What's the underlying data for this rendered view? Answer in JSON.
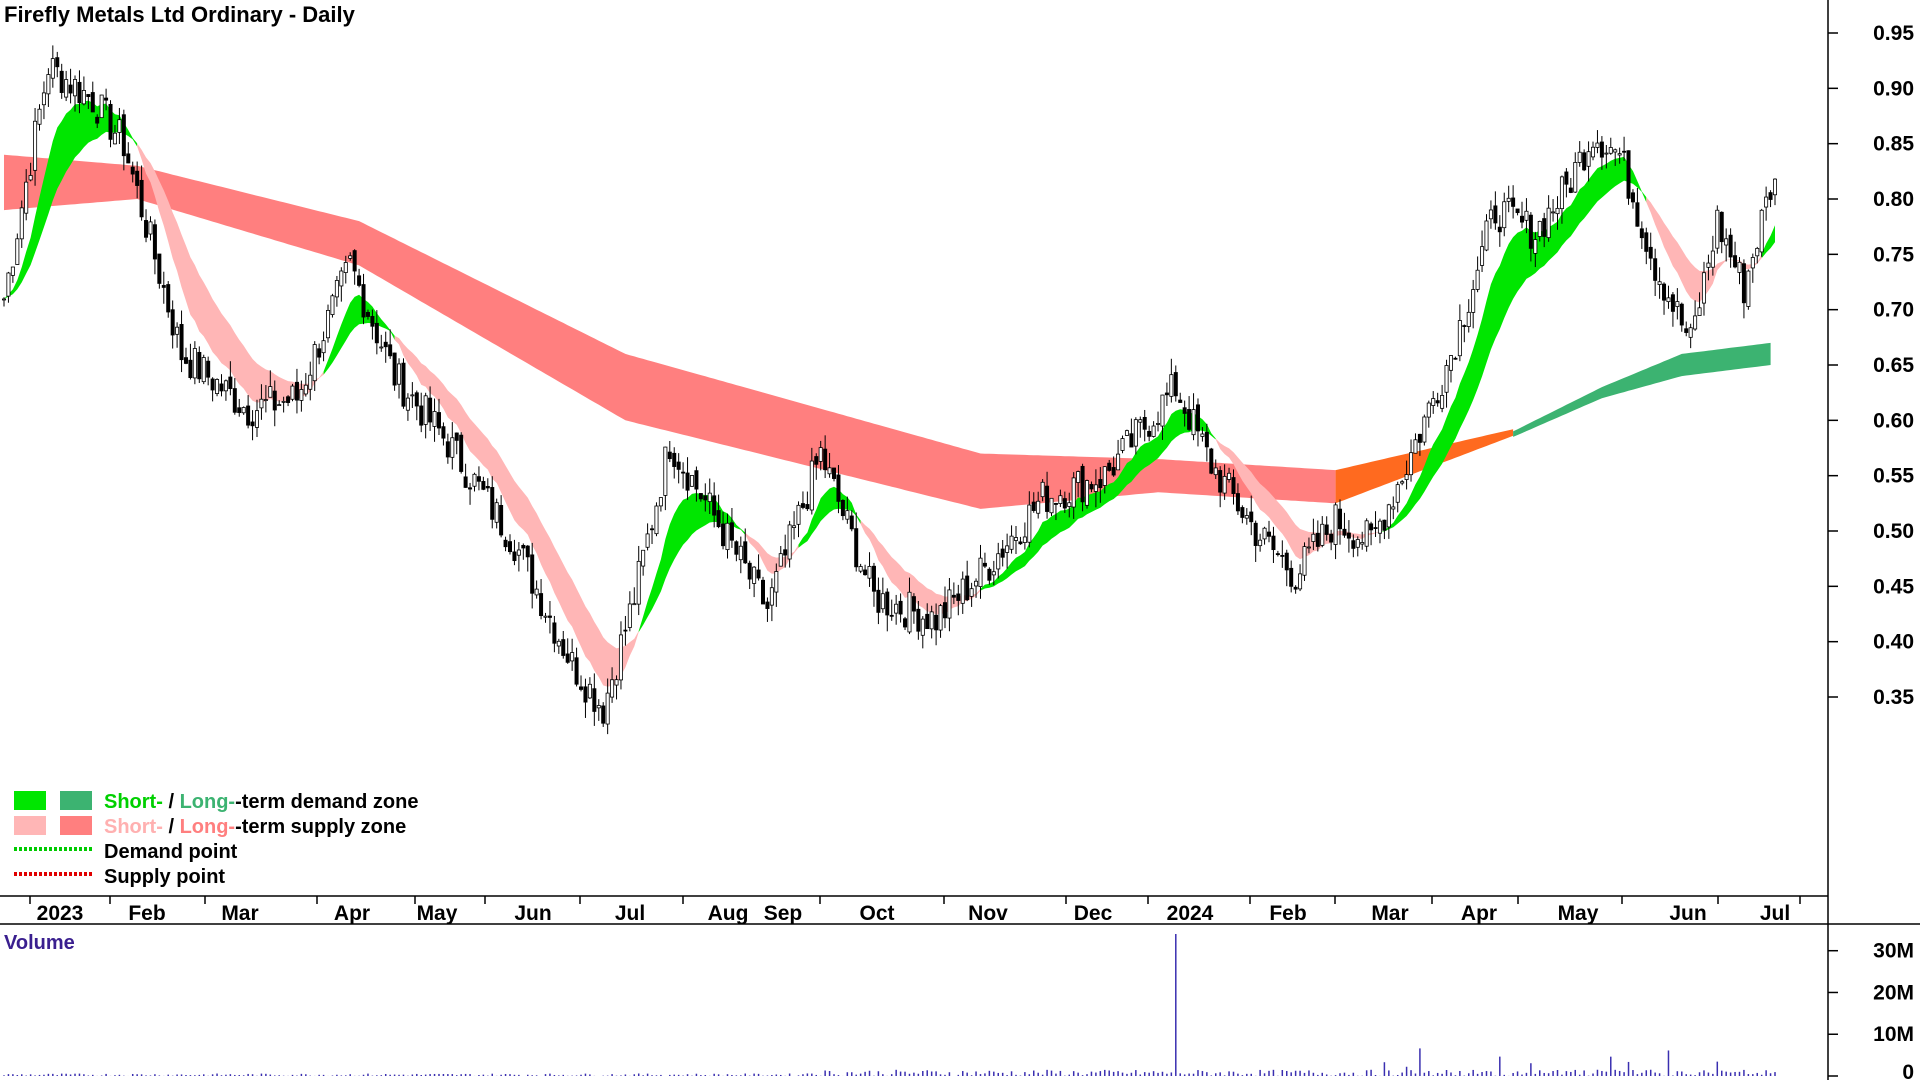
{
  "chart_data": {
    "type": "candlestick",
    "title": "Firefly Metals Ltd Ordinary - Daily",
    "y_ticks": [
      "0.95",
      "0.90",
      "0.85",
      "0.80",
      "0.75",
      "0.70",
      "0.65",
      "0.60",
      "0.55",
      "0.50",
      "0.45",
      "0.40",
      "0.35"
    ],
    "ylim": [
      0.31,
      0.97
    ],
    "x_labels": [
      "2023",
      "Feb",
      "Mar",
      "Apr",
      "May",
      "Jun",
      "Jul",
      "Aug",
      "Sep",
      "Oct",
      "Nov",
      "Dec",
      "2024",
      "Feb",
      "Mar",
      "Apr",
      "May",
      "Jun",
      "Jul"
    ],
    "price_keypoints": [
      {
        "i": 0,
        "v": 0.71
      },
      {
        "i": 10,
        "v": 0.92
      },
      {
        "i": 20,
        "v": 0.89
      },
      {
        "i": 27,
        "v": 0.85
      },
      {
        "i": 40,
        "v": 0.66
      },
      {
        "i": 55,
        "v": 0.61
      },
      {
        "i": 66,
        "v": 0.62
      },
      {
        "i": 78,
        "v": 0.74
      },
      {
        "i": 88,
        "v": 0.64
      },
      {
        "i": 100,
        "v": 0.58
      },
      {
        "i": 115,
        "v": 0.49
      },
      {
        "i": 128,
        "v": 0.38
      },
      {
        "i": 135,
        "v": 0.34
      },
      {
        "i": 142,
        "v": 0.44
      },
      {
        "i": 150,
        "v": 0.58
      },
      {
        "i": 162,
        "v": 0.5
      },
      {
        "i": 172,
        "v": 0.43
      },
      {
        "i": 184,
        "v": 0.57
      },
      {
        "i": 196,
        "v": 0.44
      },
      {
        "i": 210,
        "v": 0.42
      },
      {
        "i": 222,
        "v": 0.47
      },
      {
        "i": 234,
        "v": 0.53
      },
      {
        "i": 248,
        "v": 0.55
      },
      {
        "i": 258,
        "v": 0.6
      },
      {
        "i": 264,
        "v": 0.63
      },
      {
        "i": 272,
        "v": 0.56
      },
      {
        "i": 282,
        "v": 0.5
      },
      {
        "i": 291,
        "v": 0.46
      },
      {
        "i": 300,
        "v": 0.51
      },
      {
        "i": 308,
        "v": 0.49
      },
      {
        "i": 316,
        "v": 0.56
      },
      {
        "i": 326,
        "v": 0.66
      },
      {
        "i": 336,
        "v": 0.79
      },
      {
        "i": 345,
        "v": 0.77
      },
      {
        "i": 352,
        "v": 0.81
      },
      {
        "i": 358,
        "v": 0.86
      },
      {
        "i": 364,
        "v": 0.84
      },
      {
        "i": 372,
        "v": 0.74
      },
      {
        "i": 380,
        "v": 0.67
      },
      {
        "i": 386,
        "v": 0.78
      },
      {
        "i": 392,
        "v": 0.72
      },
      {
        "i": 398,
        "v": 0.81
      }
    ],
    "long_supply_zone": [
      {
        "i": 0,
        "top": 0.84,
        "bot": 0.79
      },
      {
        "i": 30,
        "top": 0.83,
        "bot": 0.8
      },
      {
        "i": 80,
        "top": 0.78,
        "bot": 0.74
      },
      {
        "i": 140,
        "top": 0.66,
        "bot": 0.6
      },
      {
        "i": 220,
        "top": 0.57,
        "bot": 0.52
      },
      {
        "i": 260,
        "top": 0.565,
        "bot": 0.535
      },
      {
        "i": 300,
        "top": 0.555,
        "bot": 0.525
      }
    ],
    "long_demand_zone": [
      {
        "i": 340,
        "top": 0.59,
        "bot": 0.585
      },
      {
        "i": 360,
        "top": 0.63,
        "bot": 0.62
      },
      {
        "i": 378,
        "top": 0.66,
        "bot": 0.64
      },
      {
        "i": 398,
        "top": 0.67,
        "bot": 0.65
      }
    ],
    "legend": [
      {
        "short": "Short-",
        "sep": " / ",
        "long": "Long-",
        "rest": "-term demand zone"
      },
      {
        "short": "Short-",
        "sep": " / ",
        "long": "Long-",
        "rest": "-term supply zone"
      },
      {
        "label": "Demand point"
      },
      {
        "label": "Supply point"
      }
    ],
    "volume": {
      "title": "Volume",
      "ticks": [
        "30M",
        "20M",
        "10M",
        "0"
      ],
      "ymax": 34,
      "spike_volume_m": 34
    },
    "colors": {
      "short_demand": "#00e600",
      "long_demand": "#3cb371",
      "short_supply": "#ffb6b6",
      "long_supply": "#ff7f7f",
      "overlap": "#ff6a1f",
      "demand_point": "#00cc00",
      "supply_point": "#e00000",
      "volume_bar": "#3a2fb0"
    }
  }
}
